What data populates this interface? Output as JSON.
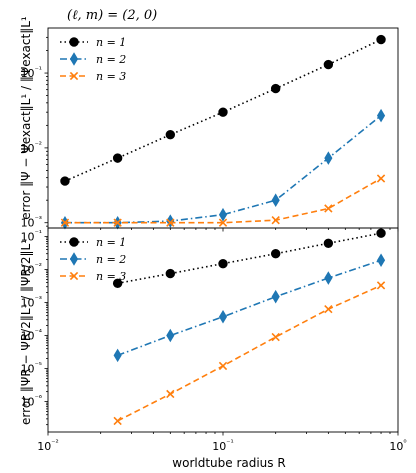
{
  "chart_data": [
    {
      "type": "line",
      "title": "(ℓ, m) = (2, 0)",
      "ylabel": "error ‖Ψ − Ψexact‖L¹ / ‖Ψexact‖L¹",
      "xlabel": "",
      "xscale": "log",
      "yscale": "log",
      "xlim": [
        0.01,
        1
      ],
      "ylim": [
        0.00085,
        0.4
      ],
      "ytick_labels": [
        "10⁻³",
        "10⁻²",
        "10⁻¹"
      ],
      "ytick_values": [
        0.001,
        0.01,
        0.1
      ],
      "legend": "upper-left",
      "series": [
        {
          "name": "n = 1",
          "color": "#000000",
          "marker": "circle",
          "linestyle": "dotted",
          "x": [
            0.0125,
            0.025,
            0.05,
            0.1,
            0.2,
            0.4,
            0.8
          ],
          "y": [
            0.0036,
            0.0073,
            0.015,
            0.03,
            0.062,
            0.13,
            0.28
          ]
        },
        {
          "name": "n = 2",
          "color": "#1f77b4",
          "marker": "thin-diamond",
          "linestyle": "dash-dot",
          "x": [
            0.0125,
            0.025,
            0.05,
            0.1,
            0.2,
            0.4,
            0.8
          ],
          "y": [
            0.001,
            0.001,
            0.00105,
            0.00128,
            0.002,
            0.0073,
            0.027
          ]
        },
        {
          "name": "n = 3",
          "color": "#ff7f0e",
          "marker": "x",
          "linestyle": "dashed",
          "x": [
            0.0125,
            0.025,
            0.05,
            0.1,
            0.2,
            0.4,
            0.8
          ],
          "y": [
            0.001,
            0.001,
            0.001,
            0.001,
            0.00108,
            0.00155,
            0.0039
          ]
        }
      ]
    },
    {
      "type": "line",
      "title": "",
      "ylabel": "error ‖ΨR − ΨR/2‖L¹ / ‖ΨR/2‖L¹",
      "xlabel": "worldtube radius R",
      "xscale": "log",
      "yscale": "log",
      "xlim": [
        0.01,
        1
      ],
      "ylim": [
        1.2e-07,
        0.18
      ],
      "xtick_labels": [
        "10⁻²",
        "10⁻¹",
        "10⁰"
      ],
      "xtick_values": [
        0.01,
        0.1,
        1
      ],
      "ytick_labels": [
        "10⁻⁶",
        "10⁻⁵",
        "10⁻⁴",
        "10⁻³",
        "10⁻²",
        "10⁻¹"
      ],
      "ytick_values": [
        1e-06,
        1e-05,
        0.0001,
        0.001,
        0.01,
        0.1
      ],
      "legend": "upper-left",
      "series": [
        {
          "name": "n = 1",
          "color": "#000000",
          "marker": "circle",
          "linestyle": "dotted",
          "x": [
            0.025,
            0.05,
            0.1,
            0.2,
            0.4,
            0.8
          ],
          "y": [
            0.0038,
            0.0075,
            0.015,
            0.03,
            0.062,
            0.125
          ]
        },
        {
          "name": "n = 2",
          "color": "#1f77b4",
          "marker": "thin-diamond",
          "linestyle": "dash-dot",
          "x": [
            0.025,
            0.05,
            0.1,
            0.2,
            0.4,
            0.8
          ],
          "y": [
            2.5e-05,
            0.0001,
            0.00037,
            0.0015,
            0.0055,
            0.019
          ]
        },
        {
          "name": "n = 3",
          "color": "#ff7f0e",
          "marker": "x",
          "linestyle": "dashed",
          "x": [
            0.025,
            0.05,
            0.1,
            0.2,
            0.4,
            0.8
          ],
          "y": [
            2.6e-07,
            1.7e-06,
            1.2e-05,
            9e-05,
            0.00063,
            0.0033
          ]
        }
      ]
    }
  ]
}
